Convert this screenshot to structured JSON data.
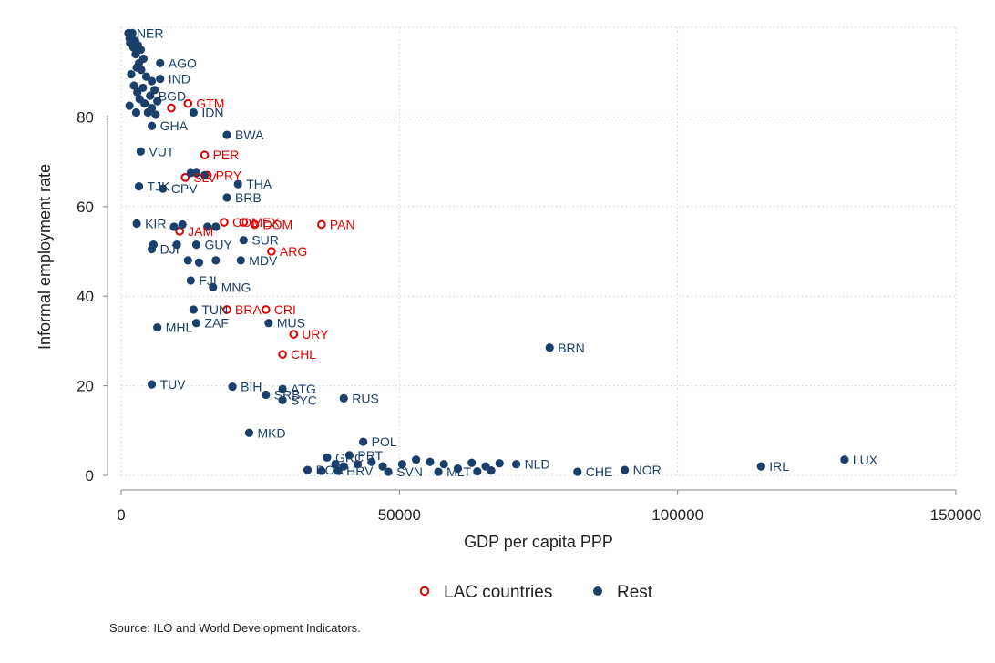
{
  "chart_data": {
    "type": "scatter",
    "xlabel": "GDP per capita PPP",
    "ylabel": "Informal employment rate",
    "xlim": [
      0,
      150000
    ],
    "ylim": [
      0,
      100
    ],
    "xticks": [
      0,
      50000,
      100000,
      150000
    ],
    "yticks": [
      0,
      20,
      40,
      60,
      80
    ],
    "grid": true,
    "legend_position": "bottom",
    "series": [
      {
        "name": "LAC countries",
        "marker": "hollow-circle",
        "color": "#e00000",
        "points": [
          {
            "label": "GTM",
            "x": 12000,
            "y": 83
          },
          {
            "label": "",
            "x": 9000,
            "y": 82
          },
          {
            "label": "PER",
            "x": 15000,
            "y": 71.5
          },
          {
            "label": "SLV",
            "x": 11500,
            "y": 66.5
          },
          {
            "label": "PRY",
            "x": 15500,
            "y": 67
          },
          {
            "label": "JAM",
            "x": 10500,
            "y": 54.5
          },
          {
            "label": "COL",
            "x": 18500,
            "y": 56.5
          },
          {
            "label": "MEX",
            "x": 22000,
            "y": 56.5
          },
          {
            "label": "DOM",
            "x": 24000,
            "y": 56
          },
          {
            "label": "PAN",
            "x": 36000,
            "y": 56
          },
          {
            "label": "ARG",
            "x": 27000,
            "y": 50
          },
          {
            "label": "BRA",
            "x": 19000,
            "y": 37
          },
          {
            "label": "CRI",
            "x": 26000,
            "y": 37
          },
          {
            "label": "URY",
            "x": 31000,
            "y": 31.5
          },
          {
            "label": "CHL",
            "x": 29000,
            "y": 27
          }
        ]
      },
      {
        "name": "Rest",
        "marker": "filled-circle",
        "color": "#1a3f6a",
        "points": [
          {
            "label": "NER",
            "x": 1300,
            "y": 98.7
          },
          {
            "label": "",
            "x": 2000,
            "y": 98.7
          },
          {
            "label": "",
            "x": 1500,
            "y": 97.5
          },
          {
            "label": "",
            "x": 2500,
            "y": 97
          },
          {
            "label": "",
            "x": 1600,
            "y": 96.5
          },
          {
            "label": "",
            "x": 3000,
            "y": 96
          },
          {
            "label": "",
            "x": 2200,
            "y": 95.5
          },
          {
            "label": "",
            "x": 3500,
            "y": 95
          },
          {
            "label": "",
            "x": 2600,
            "y": 94
          },
          {
            "label": "",
            "x": 4000,
            "y": 93
          },
          {
            "label": "",
            "x": 3200,
            "y": 92
          },
          {
            "label": "AGO",
            "x": 7000,
            "y": 92
          },
          {
            "label": "",
            "x": 2800,
            "y": 91
          },
          {
            "label": "",
            "x": 3600,
            "y": 90.5
          },
          {
            "label": "",
            "x": 1800,
            "y": 89.5
          },
          {
            "label": "",
            "x": 4500,
            "y": 89
          },
          {
            "label": "IND",
            "x": 7000,
            "y": 88.5
          },
          {
            "label": "",
            "x": 5500,
            "y": 88
          },
          {
            "label": "",
            "x": 2300,
            "y": 87
          },
          {
            "label": "",
            "x": 3900,
            "y": 86.5
          },
          {
            "label": "",
            "x": 6000,
            "y": 86
          },
          {
            "label": "",
            "x": 2900,
            "y": 85.5
          },
          {
            "label": "BGD",
            "x": 5200,
            "y": 84.7
          },
          {
            "label": "",
            "x": 3300,
            "y": 84
          },
          {
            "label": "",
            "x": 6500,
            "y": 83.5
          },
          {
            "label": "",
            "x": 4200,
            "y": 83
          },
          {
            "label": "",
            "x": 1500,
            "y": 82.5
          },
          {
            "label": "",
            "x": 5500,
            "y": 82
          },
          {
            "label": "",
            "x": 2700,
            "y": 81
          },
          {
            "label": "",
            "x": 4800,
            "y": 81
          },
          {
            "label": "",
            "x": 6200,
            "y": 80.5
          },
          {
            "label": "IDN",
            "x": 13000,
            "y": 81
          },
          {
            "label": "GHA",
            "x": 5500,
            "y": 78
          },
          {
            "label": "BWA",
            "x": 19000,
            "y": 76
          },
          {
            "label": "VUT",
            "x": 3500,
            "y": 72.3
          },
          {
            "label": "",
            "x": 12500,
            "y": 67.5
          },
          {
            "label": "",
            "x": 13500,
            "y": 67.5
          },
          {
            "label": "",
            "x": 15000,
            "y": 67
          },
          {
            "label": "THA",
            "x": 21000,
            "y": 65
          },
          {
            "label": "TJK",
            "x": 3200,
            "y": 64.5
          },
          {
            "label": "CPV",
            "x": 7500,
            "y": 64
          },
          {
            "label": "BRB",
            "x": 19000,
            "y": 62
          },
          {
            "label": "KIR",
            "x": 2800,
            "y": 56.2
          },
          {
            "label": "",
            "x": 9500,
            "y": 55.5
          },
          {
            "label": "",
            "x": 11000,
            "y": 56
          },
          {
            "label": "",
            "x": 15500,
            "y": 55.5
          },
          {
            "label": "",
            "x": 17000,
            "y": 55.5
          },
          {
            "label": "SUR",
            "x": 22000,
            "y": 52.5
          },
          {
            "label": "",
            "x": 10000,
            "y": 51.5
          },
          {
            "label": "GUY",
            "x": 13500,
            "y": 51.5
          },
          {
            "label": "",
            "x": 5800,
            "y": 51.5
          },
          {
            "label": "DJI",
            "x": 5500,
            "y": 50.5
          },
          {
            "label": "",
            "x": 12000,
            "y": 48
          },
          {
            "label": "",
            "x": 14000,
            "y": 47.5
          },
          {
            "label": "",
            "x": 17000,
            "y": 48
          },
          {
            "label": "MDV",
            "x": 21500,
            "y": 48
          },
          {
            "label": "FJI",
            "x": 12500,
            "y": 43.5
          },
          {
            "label": "MNG",
            "x": 16500,
            "y": 42
          },
          {
            "label": "TUN",
            "x": 13000,
            "y": 37
          },
          {
            "label": "ZAF",
            "x": 13500,
            "y": 34
          },
          {
            "label": "MHL",
            "x": 6500,
            "y": 33
          },
          {
            "label": "MUS",
            "x": 26500,
            "y": 34
          },
          {
            "label": "BRN",
            "x": 77000,
            "y": 28.5
          },
          {
            "label": "TUV",
            "x": 5500,
            "y": 20.3
          },
          {
            "label": "BIH",
            "x": 20000,
            "y": 19.8
          },
          {
            "label": "ATG",
            "x": 29000,
            "y": 19.3
          },
          {
            "label": "SRB",
            "x": 26000,
            "y": 18
          },
          {
            "label": "SYC",
            "x": 29000,
            "y": 16.8
          },
          {
            "label": "RUS",
            "x": 40000,
            "y": 17.2
          },
          {
            "label": "MKD",
            "x": 23000,
            "y": 9.5
          },
          {
            "label": "POL",
            "x": 43500,
            "y": 7.5
          },
          {
            "label": "GRC",
            "x": 37000,
            "y": 4
          },
          {
            "label": "PRT",
            "x": 41000,
            "y": 4.5
          },
          {
            "label": "",
            "x": 38500,
            "y": 2.5
          },
          {
            "label": "",
            "x": 40000,
            "y": 2
          },
          {
            "label": "",
            "x": 42500,
            "y": 2.5
          },
          {
            "label": "",
            "x": 45000,
            "y": 3
          },
          {
            "label": "",
            "x": 47000,
            "y": 2
          },
          {
            "label": "",
            "x": 50500,
            "y": 2.5
          },
          {
            "label": "",
            "x": 53000,
            "y": 3.5
          },
          {
            "label": "",
            "x": 55500,
            "y": 3
          },
          {
            "label": "",
            "x": 58000,
            "y": 2.5
          },
          {
            "label": "",
            "x": 60500,
            "y": 1.5
          },
          {
            "label": "",
            "x": 63000,
            "y": 2.8
          },
          {
            "label": "",
            "x": 65500,
            "y": 2
          },
          {
            "label": "",
            "x": 68000,
            "y": 2.7
          },
          {
            "label": "NLD",
            "x": 71000,
            "y": 2.5
          },
          {
            "label": "HRV",
            "x": 39000,
            "y": 1
          },
          {
            "label": "SVN",
            "x": 48000,
            "y": 0.8
          },
          {
            "label": "DOR",
            "x": 33500,
            "y": 1.2
          },
          {
            "label": "",
            "x": 36000,
            "y": 1
          },
          {
            "label": "MLT",
            "x": 57000,
            "y": 0.8
          },
          {
            "label": "",
            "x": 64000,
            "y": 0.9
          },
          {
            "label": "",
            "x": 66500,
            "y": 1.1
          },
          {
            "label": "CHE",
            "x": 82000,
            "y": 0.8
          },
          {
            "label": "NOR",
            "x": 90500,
            "y": 1.2
          },
          {
            "label": "IRL",
            "x": 115000,
            "y": 2
          },
          {
            "label": "LUX",
            "x": 130000,
            "y": 3.5
          }
        ]
      }
    ]
  },
  "source_note": "Source: ILO and World Development Indicators."
}
